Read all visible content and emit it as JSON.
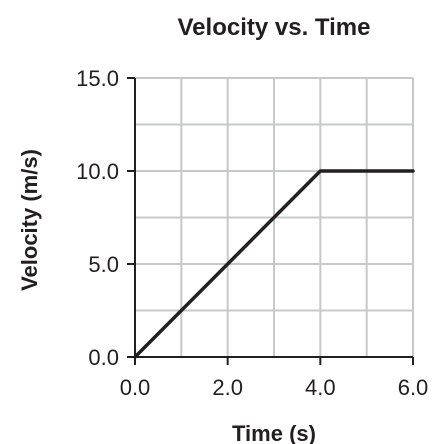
{
  "chart_data": {
    "type": "line",
    "title": "Velocity vs. Time",
    "xlabel": "Time (s)",
    "ylabel": "Velocity (m/s)",
    "xlim": [
      0,
      6
    ],
    "ylim": [
      0,
      15
    ],
    "x_ticks": [
      0,
      2,
      4,
      6
    ],
    "x_tick_labels": [
      "0.0",
      "2.0",
      "4.0",
      "6.0"
    ],
    "y_ticks": [
      0,
      5,
      10,
      15
    ],
    "y_tick_labels": [
      "0.0",
      "5.0",
      "10.0",
      "15.0"
    ],
    "grid": true,
    "x_grid_step": 1,
    "y_grid_step": 2.5,
    "series": [
      {
        "x": [
          0,
          4,
          6
        ],
        "y": [
          0,
          10,
          10
        ]
      }
    ],
    "colors": {
      "line": "#231f20",
      "axis": "#231f20",
      "grid": "#c7c8ca",
      "text": "#231f20",
      "background": "#ffffff"
    }
  }
}
